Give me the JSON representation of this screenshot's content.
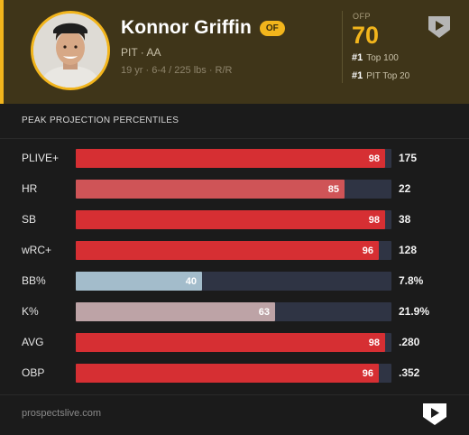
{
  "player": {
    "name": "Konnor Griffin",
    "position": "OF",
    "team_level": "PIT · AA",
    "bio": "19 yr · 6-4 / 225 lbs · R/R"
  },
  "ofp": {
    "label": "OFP",
    "value": "70",
    "ranks": [
      {
        "rank": "#1",
        "label": "Top 100"
      },
      {
        "rank": "#1",
        "label": "PIT Top 20"
      }
    ]
  },
  "section": {
    "title": "PEAK PROJECTION PERCENTILES"
  },
  "stats": [
    {
      "label": "PLIVE+",
      "percentile": 98,
      "value": "175",
      "color": "#d62f33"
    },
    {
      "label": "HR",
      "percentile": 85,
      "value": "22",
      "color": "#cf5457"
    },
    {
      "label": "SB",
      "percentile": 98,
      "value": "38",
      "color": "#d62f33"
    },
    {
      "label": "wRC+",
      "percentile": 96,
      "value": "128",
      "color": "#d62f33"
    },
    {
      "label": "BB%",
      "percentile": 40,
      "value": "7.8%",
      "color": "#a3bccb"
    },
    {
      "label": "K%",
      "percentile": 63,
      "value": "21.9%",
      "color": "#bda3a6"
    },
    {
      "label": "AVG",
      "percentile": 98,
      "value": ".280",
      "color": "#d62f33"
    },
    {
      "label": "OBP",
      "percentile": 96,
      "value": ".352",
      "color": "#d62f33"
    }
  ],
  "footer": {
    "site": "prospectslive.com"
  },
  "colors": {
    "accent": "#f2b51c",
    "header_bg": "#3f3519",
    "track": "#2f3444"
  }
}
